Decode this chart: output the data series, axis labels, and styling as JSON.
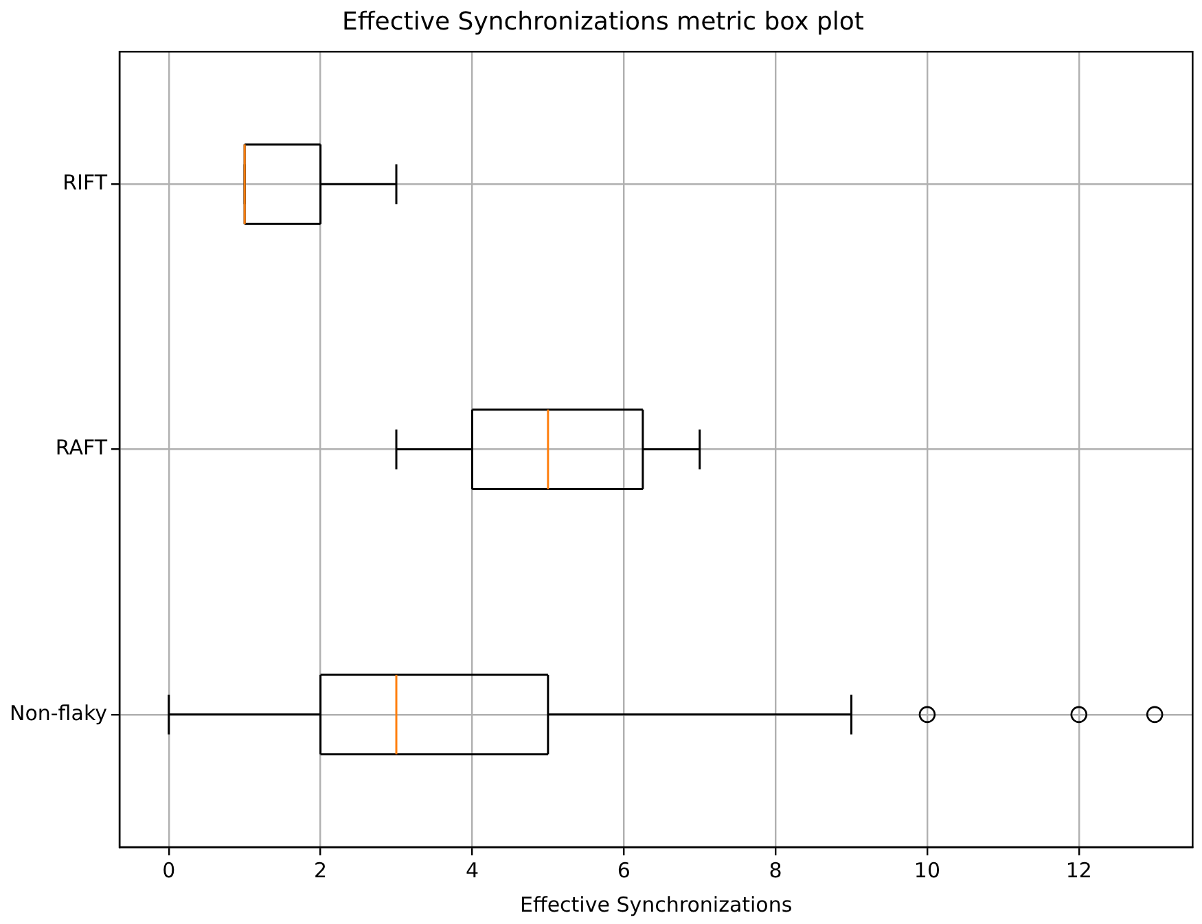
{
  "chart_data": {
    "type": "box",
    "orientation": "horizontal",
    "title": "Effective Synchronizations metric box plot",
    "xlabel": "Effective Synchronizations",
    "categories": [
      "RIFT",
      "RAFT",
      "Non-flaky"
    ],
    "boxes": [
      {
        "low": 1,
        "q1": 1,
        "median": 1,
        "q3": 2,
        "high": 3
      },
      {
        "low": 3,
        "q1": 4,
        "median": 5,
        "q3": 6.25,
        "high": 7
      },
      {
        "low": 0,
        "q1": 2,
        "median": 3,
        "q3": 5,
        "high": 9,
        "outliers": [
          10,
          12,
          13
        ]
      }
    ],
    "color": "#000000",
    "xlim": [
      -0.65,
      13.5
    ],
    "xticks": [
      0,
      2,
      4,
      6,
      8,
      10,
      12
    ],
    "grid": true
  }
}
